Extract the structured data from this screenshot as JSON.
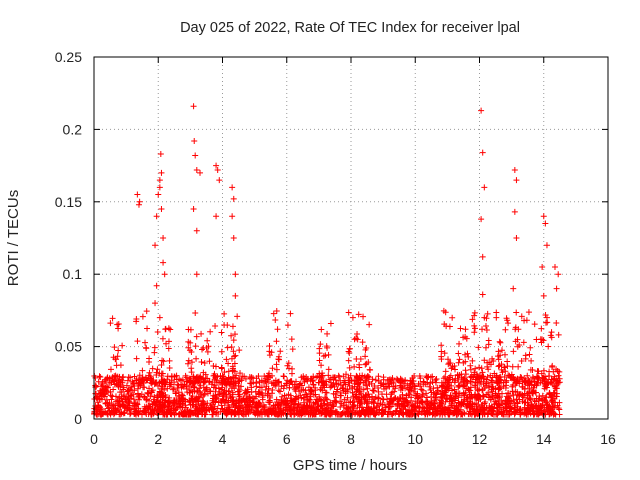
{
  "chart_data": {
    "type": "scatter",
    "title": "Day 025 of 2022, Rate Of TEC Index for receiver lpal",
    "xlabel": "GPS time / hours",
    "ylabel": "ROTI / TECUs",
    "xlim": [
      0,
      16
    ],
    "ylim": [
      0,
      0.25
    ],
    "xticks": [
      "0",
      "2",
      "4",
      "6",
      "8",
      "10",
      "12",
      "14",
      "16"
    ],
    "yticks": [
      "0",
      "0.05",
      "0.1",
      "0.15",
      "0.2",
      "0.25"
    ],
    "grid": true,
    "marker": "+",
    "color": "#ff0000",
    "data_range_hours": [
      0,
      14.5
    ],
    "series": [
      {
        "name": "ROTI",
        "baseline_range": [
          0.003,
          0.03
        ],
        "x": [
          1.35,
          1.4,
          1.42,
          1.9,
          1.95,
          2.0,
          2.05,
          2.05,
          2.08,
          2.1,
          2.1,
          2.15,
          2.15,
          2.2,
          1.95,
          1.9,
          2.05,
          3.1,
          3.12,
          3.15,
          3.2,
          3.3,
          3.1,
          3.2,
          3.2,
          3.8,
          3.85,
          3.9,
          3.8,
          4.3,
          4.35,
          4.3,
          4.35,
          4.4,
          4.4,
          12.05,
          12.1,
          12.15,
          12.05,
          12.1,
          12.1,
          12.15,
          13.1,
          13.15,
          13.1,
          13.15,
          13.05,
          14.0,
          14.05,
          14.1,
          13.95,
          14.0,
          14.1,
          14.35,
          14.45,
          14.4
        ],
        "y": [
          0.155,
          0.148,
          0.15,
          0.12,
          0.14,
          0.155,
          0.16,
          0.165,
          0.183,
          0.17,
          0.145,
          0.125,
          0.108,
          0.1,
          0.092,
          0.08,
          0.07,
          0.216,
          0.192,
          0.182,
          0.172,
          0.17,
          0.145,
          0.13,
          0.1,
          0.175,
          0.172,
          0.165,
          0.14,
          0.16,
          0.152,
          0.14,
          0.125,
          0.1,
          0.085,
          0.213,
          0.184,
          0.16,
          0.138,
          0.112,
          0.086,
          0.07,
          0.172,
          0.165,
          0.143,
          0.125,
          0.09,
          0.14,
          0.135,
          0.12,
          0.105,
          0.085,
          0.07,
          0.105,
          0.1,
          0.09
        ]
      }
    ]
  }
}
